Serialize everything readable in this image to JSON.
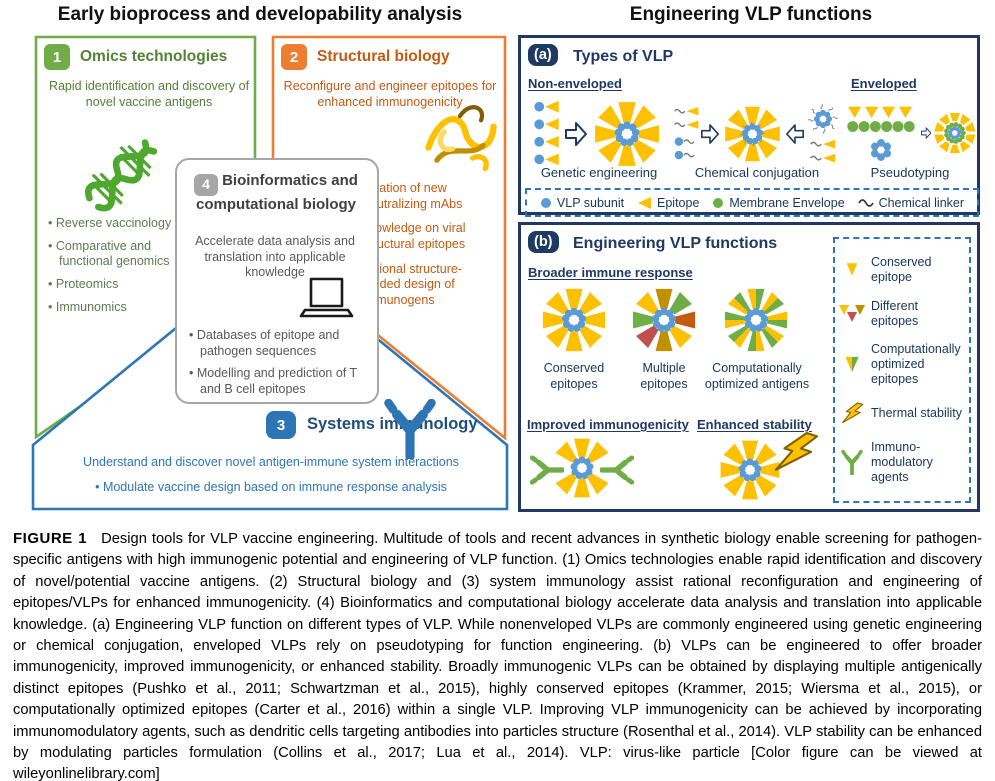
{
  "header": {
    "left_title": "Early bioprocess and developability analysis",
    "right_title": "Engineering VLP functions"
  },
  "omics": {
    "number": "1",
    "title": "Omics technologies",
    "description": "Rapid identification and discovery of novel vaccine antigens",
    "bullets": [
      "Reverse vaccinology",
      "Comparative and functional genomics",
      "Proteomics",
      "Immunomics"
    ]
  },
  "structural": {
    "number": "2",
    "title": "Structural biology",
    "description": "Reconfigure and engineer epitopes for enhanced immunogenicity",
    "bullets": [
      "Isolation of new neutralizing mAbs",
      "Knowledge on viral structural epitopes",
      "Rational structure-guided design of immunogens"
    ]
  },
  "bioinformatics": {
    "number": "4",
    "title": "Bioinformatics and computational biology",
    "description": "Accelerate data analysis and translation into applicable knowledge",
    "bullets": [
      "Databases of epitope and pathogen sequences",
      "Modelling and prediction of T and B cell epitopes"
    ]
  },
  "systems": {
    "number": "3",
    "title": "Systems immunology",
    "line1": "Understand and discover novel antigen-immune system interactions",
    "line2": "• Modulate vaccine design based on immune response analysis"
  },
  "panel_a": {
    "badge": "(a)",
    "title": "Types of VLP",
    "nonenveloped_label": "Non-enveloped",
    "enveloped_label": "Enveloped",
    "methods": [
      "Genetic engineering",
      "Chemical conjugation",
      "Pseudotyping"
    ],
    "legend": [
      "VLP subunit",
      "Epitope",
      "Membrane Envelope",
      "Chemical linker"
    ]
  },
  "panel_b": {
    "badge": "(b)",
    "title": "Engineering VLP functions",
    "broader_label": "Broader immune response",
    "star_labels": [
      "Conserved epitopes",
      "Multiple epitopes",
      "Computationally optimized antigens"
    ],
    "improved_label": "Improved immunogenicity",
    "enhanced_label": "Enhanced stability",
    "legend": [
      "Conserved epitope",
      "Different epitopes",
      "Computationally optimized epitopes",
      "Thermal stability",
      "Immuno-modulatory agents"
    ]
  },
  "caption": {
    "label": "FIGURE 1",
    "text": "Design tools for VLP vaccine engineering. Multitude of tools and recent advances in synthetic biology enable screening for pathogen-specific antigens with high immunogenic potential and engineering of VLP function. (1) Omics technologies enable rapid identification and discovery of novel/potential vaccine antigens. (2) Structural biology and (3) system immunology assist rational reconfiguration and engineering of epitopes/VLPs for enhanced immunogenicity. (4) Bioinformatics and computational biology accelerate data analysis and translation into applicable knowledge. (a) Engineering VLP function on different types of VLP. While nonenveloped VLPs are commonly engineered using genetic engineering or chemical conjugation, enveloped VLPs rely on pseudotyping for function engineering. (b) VLPs can be engineered to offer broader immunogenicity, improved immunogenicity, or enhanced stability. Broadly immunogenic VLPs can be obtained by displaying multiple antigenically distinct epitopes (Pushko et al., 2011; Schwartzman et al., 2015), highly conserved epitopes (Krammer, 2015; Wiersma et al., 2015), or computationally optimized epitopes (Carter et al., 2016) within a single VLP. Improving VLP immunogenicity can be achieved by incorporating immunomodulatory agents, such as dendritic cells targeting antibodies into particles structure (Rosenthal et al., 2014). VLP stability can be enhanced by modulating particles formulation (Collins et al., 2017; Lua et al., 2014). VLP: virus-like particle [Color figure can be viewed at wileyonlinelibrary.com]"
  },
  "colors": {
    "green": "#70AD47",
    "green_text": "#538135",
    "orange": "#ED7D31",
    "orange_text": "#C55A11",
    "gray": "#A6A6A6",
    "gray_title": "#404040",
    "gray_text": "#595959",
    "blue": "#2E75B6",
    "blue_dark": "#1F4E79",
    "navy": "#1F3864",
    "yellow": "#FFC000",
    "vlp_blue": "#5B9BD5",
    "mem_green": "#70AD47"
  }
}
